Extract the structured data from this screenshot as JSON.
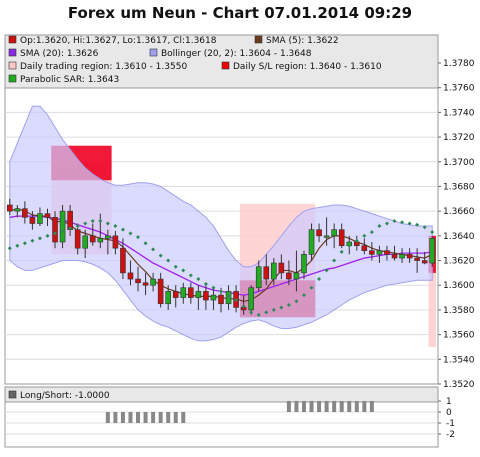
{
  "title": "Forex um Neun - Chart 07.01.2014 09:29",
  "legend": [
    {
      "text": "Op:1.3620, Hi:1.3627, Lo:1.3617, Cl:1.3618",
      "color": "#cc1111"
    },
    {
      "text": "SMA (5): 1.3622",
      "color": "#6b3b1e"
    },
    {
      "text": "SMA (20): 1.3626",
      "color": "#8a2be2"
    },
    {
      "text": "Bollinger (20, 2): 1.3604 - 1.3648",
      "color": "#a0a0f0"
    },
    {
      "text": "Daily trading region: 1.3610 - 1.3550",
      "color": "#ffc8c8"
    },
    {
      "text": "Daily S/L region: 1.3640 - 1.3610",
      "color": "#ee0000"
    },
    {
      "text": "Parabolic SAR: 1.3643",
      "color": "#22aa22"
    }
  ],
  "sub_legend": {
    "text": "Long/Short: -1.0000",
    "color": "#666666"
  },
  "colors": {
    "up": "#22aa22",
    "down": "#cc1111",
    "sma5": "#6b3b1e",
    "sma20": "#a020f0",
    "boll_fill": "#ccccff",
    "boll_line": "#a0a0f0",
    "sar": "#2e8b57",
    "trading_region": "#ffcccc",
    "sl_region": "#ee0022",
    "long_short": "#888888"
  },
  "chart_data": [
    {
      "type": "candlestick",
      "title": "Forex um Neun - Chart 07.01.2014 09:29",
      "ylim": [
        1.352,
        1.378
      ],
      "y_ticks": [
        "1.3520",
        "1.3540",
        "1.3560",
        "1.3580",
        "1.3600",
        "1.3620",
        "1.3640",
        "1.3660",
        "1.3680",
        "1.3700",
        "1.3720",
        "1.3740",
        "1.3760",
        "1.3780"
      ],
      "grid": true,
      "candles": [
        {
          "o": 1.3665,
          "h": 1.367,
          "l": 1.3657,
          "c": 1.366
        },
        {
          "o": 1.366,
          "h": 1.3665,
          "l": 1.3655,
          "c": 1.3662
        },
        {
          "o": 1.3662,
          "h": 1.3668,
          "l": 1.365,
          "c": 1.3655
        },
        {
          "o": 1.3655,
          "h": 1.366,
          "l": 1.3645,
          "c": 1.365
        },
        {
          "o": 1.365,
          "h": 1.3663,
          "l": 1.3648,
          "c": 1.3658
        },
        {
          "o": 1.3658,
          "h": 1.3662,
          "l": 1.3648,
          "c": 1.3655
        },
        {
          "o": 1.3655,
          "h": 1.366,
          "l": 1.363,
          "c": 1.3635
        },
        {
          "o": 1.3635,
          "h": 1.3665,
          "l": 1.363,
          "c": 1.366
        },
        {
          "o": 1.366,
          "h": 1.3665,
          "l": 1.364,
          "c": 1.3645
        },
        {
          "o": 1.3645,
          "h": 1.365,
          "l": 1.3625,
          "c": 1.363
        },
        {
          "o": 1.363,
          "h": 1.3645,
          "l": 1.3622,
          "c": 1.364
        },
        {
          "o": 1.364,
          "h": 1.365,
          "l": 1.3632,
          "c": 1.3635
        },
        {
          "o": 1.3635,
          "h": 1.3658,
          "l": 1.363,
          "c": 1.3638
        },
        {
          "o": 1.3638,
          "h": 1.3645,
          "l": 1.3625,
          "c": 1.364
        },
        {
          "o": 1.364,
          "h": 1.3644,
          "l": 1.3625,
          "c": 1.363
        },
        {
          "o": 1.363,
          "h": 1.3638,
          "l": 1.3605,
          "c": 1.361
        },
        {
          "o": 1.361,
          "h": 1.362,
          "l": 1.36,
          "c": 1.3605
        },
        {
          "o": 1.3605,
          "h": 1.3615,
          "l": 1.3595,
          "c": 1.3602
        },
        {
          "o": 1.3602,
          "h": 1.361,
          "l": 1.3592,
          "c": 1.36
        },
        {
          "o": 1.36,
          "h": 1.361,
          "l": 1.3595,
          "c": 1.3605
        },
        {
          "o": 1.3605,
          "h": 1.361,
          "l": 1.3582,
          "c": 1.3585
        },
        {
          "o": 1.3585,
          "h": 1.36,
          "l": 1.358,
          "c": 1.3595
        },
        {
          "o": 1.3595,
          "h": 1.36,
          "l": 1.3582,
          "c": 1.359
        },
        {
          "o": 1.359,
          "h": 1.3602,
          "l": 1.3585,
          "c": 1.3598
        },
        {
          "o": 1.3598,
          "h": 1.3602,
          "l": 1.3585,
          "c": 1.359
        },
        {
          "o": 1.359,
          "h": 1.36,
          "l": 1.358,
          "c": 1.3595
        },
        {
          "o": 1.3595,
          "h": 1.36,
          "l": 1.358,
          "c": 1.3588
        },
        {
          "o": 1.3588,
          "h": 1.3598,
          "l": 1.358,
          "c": 1.3592
        },
        {
          "o": 1.3592,
          "h": 1.3598,
          "l": 1.3578,
          "c": 1.3585
        },
        {
          "o": 1.3585,
          "h": 1.36,
          "l": 1.358,
          "c": 1.3595
        },
        {
          "o": 1.3595,
          "h": 1.36,
          "l": 1.3578,
          "c": 1.3582
        },
        {
          "o": 1.3582,
          "h": 1.3592,
          "l": 1.3576,
          "c": 1.358
        },
        {
          "o": 1.358,
          "h": 1.36,
          "l": 1.3576,
          "c": 1.3598
        },
        {
          "o": 1.3598,
          "h": 1.362,
          "l": 1.3595,
          "c": 1.3615
        },
        {
          "o": 1.3615,
          "h": 1.3625,
          "l": 1.36,
          "c": 1.3605
        },
        {
          "o": 1.3605,
          "h": 1.3622,
          "l": 1.36,
          "c": 1.3618
        },
        {
          "o": 1.3618,
          "h": 1.3625,
          "l": 1.3605,
          "c": 1.361
        },
        {
          "o": 1.361,
          "h": 1.362,
          "l": 1.36,
          "c": 1.3605
        },
        {
          "o": 1.3605,
          "h": 1.3628,
          "l": 1.3595,
          "c": 1.361
        },
        {
          "o": 1.361,
          "h": 1.3628,
          "l": 1.3605,
          "c": 1.3625
        },
        {
          "o": 1.3625,
          "h": 1.365,
          "l": 1.362,
          "c": 1.3645
        },
        {
          "o": 1.3645,
          "h": 1.365,
          "l": 1.3635,
          "c": 1.364
        },
        {
          "o": 1.364,
          "h": 1.3655,
          "l": 1.3632,
          "c": 1.364
        },
        {
          "o": 1.364,
          "h": 1.365,
          "l": 1.363,
          "c": 1.3645
        },
        {
          "o": 1.3645,
          "h": 1.365,
          "l": 1.363,
          "c": 1.3632
        },
        {
          "o": 1.3632,
          "h": 1.364,
          "l": 1.3625,
          "c": 1.3635
        },
        {
          "o": 1.3635,
          "h": 1.364,
          "l": 1.3628,
          "c": 1.3632
        },
        {
          "o": 1.3632,
          "h": 1.3638,
          "l": 1.3625,
          "c": 1.3628
        },
        {
          "o": 1.3628,
          "h": 1.3635,
          "l": 1.362,
          "c": 1.3625
        },
        {
          "o": 1.3625,
          "h": 1.3632,
          "l": 1.3618,
          "c": 1.3628
        },
        {
          "o": 1.3628,
          "h": 1.3632,
          "l": 1.362,
          "c": 1.3625
        },
        {
          "o": 1.3625,
          "h": 1.3632,
          "l": 1.362,
          "c": 1.3622
        },
        {
          "o": 1.3622,
          "h": 1.363,
          "l": 1.3618,
          "c": 1.3625
        },
        {
          "o": 1.3625,
          "h": 1.363,
          "l": 1.3618,
          "c": 1.3622
        },
        {
          "o": 1.3622,
          "h": 1.363,
          "l": 1.361,
          "c": 1.362
        },
        {
          "o": 1.362,
          "h": 1.3627,
          "l": 1.3617,
          "c": 1.3618
        },
        {
          "o": 1.3618,
          "h": 1.364,
          "l": 1.3615,
          "c": 1.3638
        }
      ],
      "sma5": [
        1.366,
        1.3662,
        1.366,
        1.3657,
        1.3656,
        1.3656,
        1.3651,
        1.3652,
        1.3649,
        1.3644,
        1.3642,
        1.364,
        1.3638,
        1.3637,
        1.3636,
        1.3631,
        1.3624,
        1.3617,
        1.3611,
        1.3604,
        1.36,
        1.3597,
        1.3595,
        1.3593,
        1.3592,
        1.3591,
        1.3591,
        1.3591,
        1.359,
        1.3589,
        1.3589,
        1.3587,
        1.3588,
        1.3592,
        1.3597,
        1.3605,
        1.3612,
        1.3612,
        1.361,
        1.3614,
        1.362,
        1.363,
        1.3637,
        1.364,
        1.364,
        1.3638,
        1.3635,
        1.3633,
        1.363,
        1.3628,
        1.3627,
        1.3626,
        1.3625,
        1.3624,
        1.3623,
        1.3622,
        1.3625
      ],
      "sma20": [
        1.3655,
        1.3656,
        1.3656,
        1.3656,
        1.3656,
        1.3655,
        1.3654,
        1.3653,
        1.3651,
        1.3649,
        1.3647,
        1.3645,
        1.3643,
        1.364,
        1.3637,
        1.3634,
        1.363,
        1.3626,
        1.3622,
        1.3618,
        1.3615,
        1.3612,
        1.3609,
        1.3606,
        1.3603,
        1.36,
        1.3598,
        1.3596,
        1.3595,
        1.3594,
        1.3593,
        1.3592,
        1.3593,
        1.3595,
        1.3597,
        1.3599,
        1.3601,
        1.3603,
        1.3605,
        1.3607,
        1.3609,
        1.3611,
        1.3613,
        1.3614,
        1.3616,
        1.3618,
        1.362,
        1.3622,
        1.3623,
        1.3624,
        1.3625,
        1.3625,
        1.3626,
        1.3626,
        1.3626,
        1.3626,
        1.3627
      ],
      "boll_upper": [
        1.37,
        1.3715,
        1.373,
        1.3745,
        1.3745,
        1.3738,
        1.3728,
        1.3718,
        1.371,
        1.3702,
        1.3695,
        1.369,
        1.3686,
        1.3683,
        1.3681,
        1.3681,
        1.3682,
        1.3683,
        1.3683,
        1.3682,
        1.368,
        1.3676,
        1.3672,
        1.3668,
        1.3665,
        1.366,
        1.3655,
        1.3648,
        1.3638,
        1.3628,
        1.362,
        1.3615,
        1.3615,
        1.3618,
        1.3625,
        1.3632,
        1.364,
        1.3648,
        1.3655,
        1.366,
        1.3662,
        1.3663,
        1.3664,
        1.3665,
        1.3665,
        1.3664,
        1.3662,
        1.366,
        1.3658,
        1.3656,
        1.3654,
        1.3652,
        1.365,
        1.3649,
        1.3648,
        1.3648,
        1.3648
      ],
      "boll_lower": [
        1.362,
        1.3615,
        1.3612,
        1.3612,
        1.3614,
        1.3616,
        1.3618,
        1.362,
        1.362,
        1.362,
        1.3619,
        1.3617,
        1.3614,
        1.361,
        1.3604,
        1.3596,
        1.3588,
        1.358,
        1.3575,
        1.3571,
        1.3568,
        1.3566,
        1.3563,
        1.356,
        1.3557,
        1.3555,
        1.3555,
        1.3556,
        1.3558,
        1.3562,
        1.3566,
        1.3569,
        1.3571,
        1.3572,
        1.357,
        1.3567,
        1.3565,
        1.3565,
        1.3566,
        1.3568,
        1.357,
        1.3573,
        1.3576,
        1.358,
        1.3584,
        1.3588,
        1.3591,
        1.3594,
        1.3596,
        1.3598,
        1.36,
        1.3601,
        1.3602,
        1.3603,
        1.3604,
        1.3604,
        1.3604
      ],
      "sar": [
        1.363,
        1.3632,
        1.3634,
        1.3636,
        1.3638,
        1.364,
        1.3642,
        1.3644,
        1.3646,
        1.3648,
        1.365,
        1.3652,
        1.3652,
        1.365,
        1.3648,
        1.3645,
        1.3642,
        1.3639,
        1.3634,
        1.3629,
        1.3624,
        1.362,
        1.3615,
        1.3612,
        1.3608,
        1.3605,
        1.3601,
        1.3598,
        1.3595,
        1.3591,
        1.3588,
        1.3583,
        1.3578,
        1.3576,
        1.3578,
        1.358,
        1.3582,
        1.3584,
        1.3587,
        1.3592,
        1.3598,
        1.3605,
        1.3612,
        1.362,
        1.3627,
        1.3632,
        1.3636,
        1.364,
        1.3643,
        1.3648,
        1.365,
        1.3652,
        1.3651,
        1.365,
        1.3649,
        1.3647,
        1.3643
      ],
      "daily_trading_regions": [
        {
          "from": 6,
          "to": 13,
          "low": 1.3625,
          "high": 1.37
        },
        {
          "from": 31,
          "to": 40,
          "low": 1.3578,
          "high": 1.3666
        },
        {
          "from": 56,
          "to": 56,
          "low": 1.355,
          "high": 1.361
        }
      ],
      "daily_sl_regions": [
        {
          "from": 6,
          "to": 13,
          "low": 1.3685,
          "high": 1.3713
        },
        {
          "from": 31,
          "to": 40,
          "low": 1.3574,
          "high": 1.3604
        },
        {
          "from": 56,
          "to": 56,
          "low": 1.361,
          "high": 1.364
        }
      ]
    },
    {
      "type": "bar",
      "title": "Long/Short: -1.0000",
      "ylim": [
        -2,
        1
      ],
      "y_ticks": [
        "1",
        "0",
        "-1",
        "-2"
      ],
      "values": [
        0,
        0,
        0,
        0,
        0,
        0,
        0,
        0,
        0,
        0,
        0,
        0,
        0,
        0,
        0,
        0,
        0,
        0,
        0,
        0,
        0,
        0,
        0,
        0,
        0,
        0,
        0,
        0,
        0,
        0,
        0,
        0,
        0,
        0,
        0,
        0,
        0,
        0,
        0,
        0,
        0,
        0,
        0,
        0,
        0,
        0,
        0,
        0,
        0,
        0,
        0,
        0,
        0,
        0,
        0,
        0,
        0
      ],
      "bars": [
        {
          "from": 13,
          "to": 23,
          "value": -1
        },
        {
          "from": 37,
          "to": 48,
          "value": 1
        }
      ]
    }
  ]
}
